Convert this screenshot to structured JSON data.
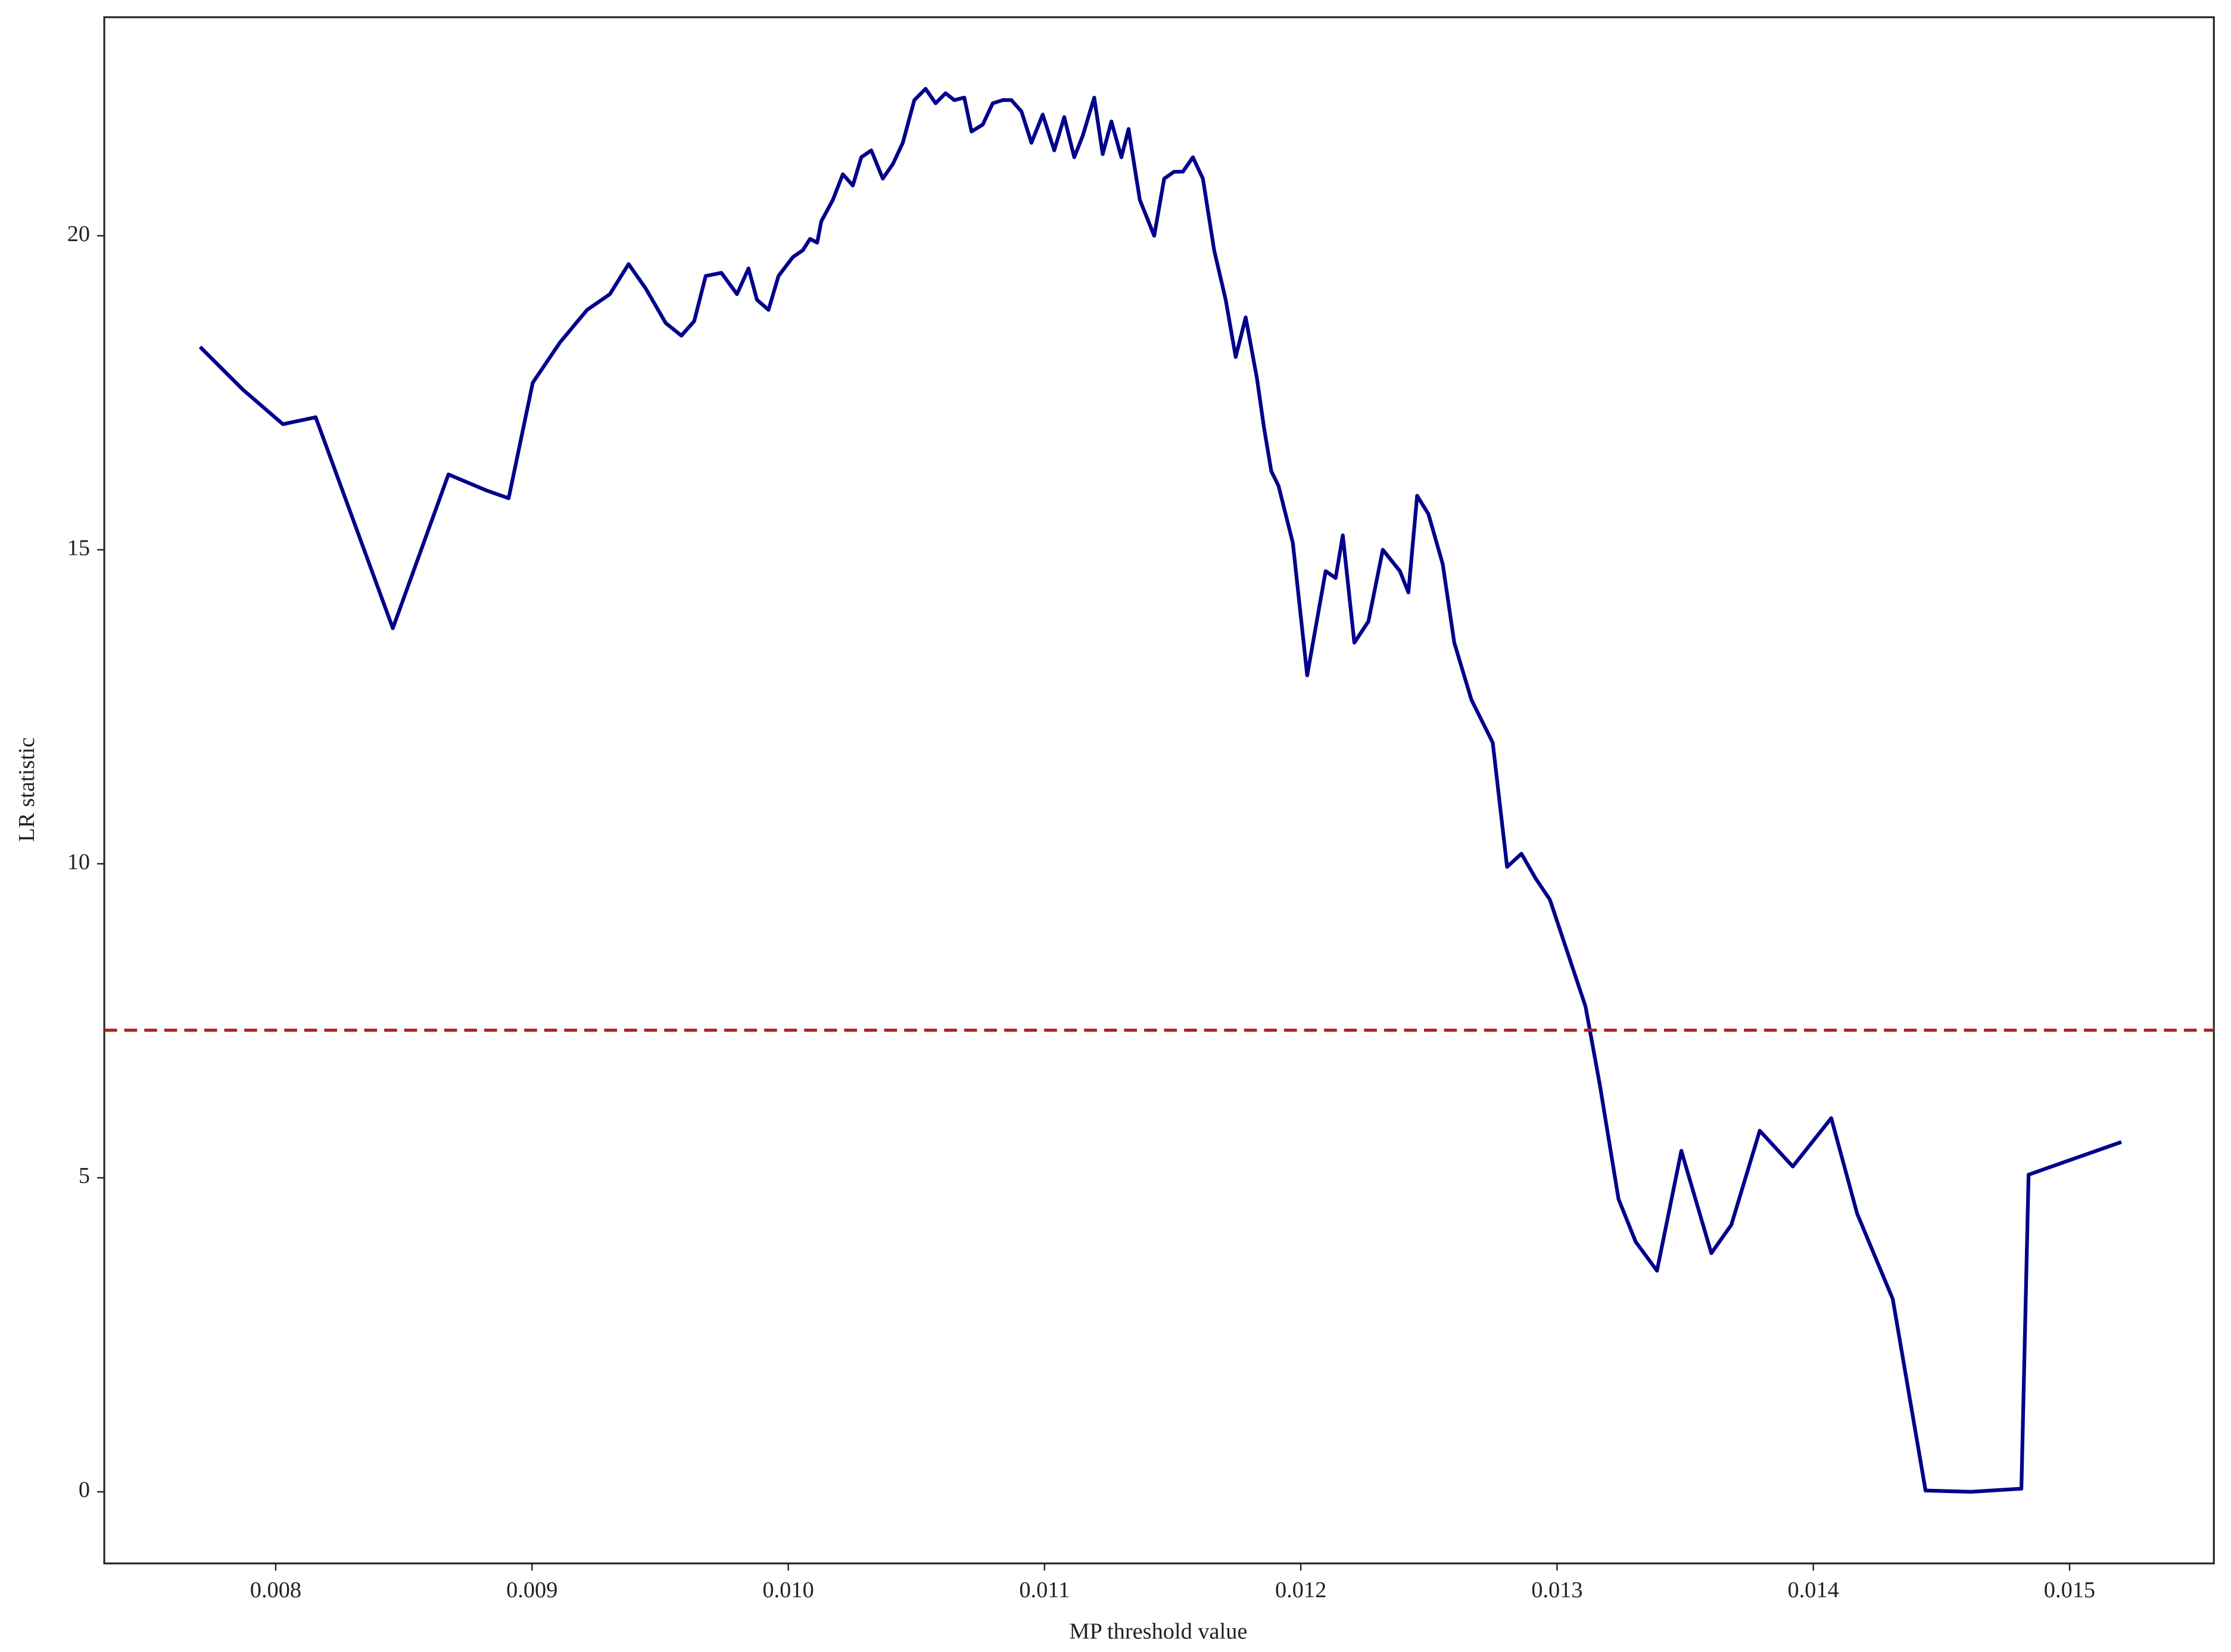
{
  "chart_data": {
    "type": "line",
    "x_label": "MP threshold value",
    "y_label": "LR statistic",
    "x": [
      0.007705,
      0.007872,
      0.008028,
      0.008156,
      0.008457,
      0.008674,
      0.008819,
      0.008909,
      0.009003,
      0.009109,
      0.009215,
      0.009304,
      0.009377,
      0.009444,
      0.009522,
      0.009583,
      0.009633,
      0.009678,
      0.009739,
      0.0098,
      0.009845,
      0.009878,
      0.009923,
      0.009962,
      0.010018,
      0.010057,
      0.010085,
      0.010113,
      0.010129,
      0.010174,
      0.010213,
      0.010252,
      0.010285,
      0.010324,
      0.010369,
      0.010408,
      0.010447,
      0.010492,
      0.010536,
      0.010575,
      0.010614,
      0.010648,
      0.010687,
      0.010715,
      0.010759,
      0.010798,
      0.010837,
      0.010871,
      0.01091,
      0.010949,
      0.010993,
      0.011038,
      0.011077,
      0.011116,
      0.011149,
      0.011194,
      0.011227,
      0.011261,
      0.0113,
      0.011328,
      0.011372,
      0.011428,
      0.011467,
      0.011506,
      0.01154,
      0.011579,
      0.011618,
      0.011662,
      0.011707,
      0.011746,
      0.011785,
      0.011829,
      0.011857,
      0.011885,
      0.011913,
      0.011969,
      0.012025,
      0.012097,
      0.012136,
      0.012164,
      0.012209,
      0.012264,
      0.01232,
      0.012387,
      0.01242,
      0.012454,
      0.012498,
      0.012554,
      0.012599,
      0.012666,
      0.012749,
      0.012805,
      0.012861,
      0.012916,
      0.012972,
      0.013111,
      0.013167,
      0.01324,
      0.013307,
      0.01339,
      0.013485,
      0.013602,
      0.01368,
      0.013791,
      0.01392,
      0.01407,
      0.014171,
      0.01431,
      0.014438,
      0.014616,
      0.014812,
      0.01484,
      0.015202
    ],
    "series": [
      {
        "name": "LR statistic",
        "color": "#00008b",
        "values": [
          18.23,
          17.55,
          17.0,
          17.11,
          13.75,
          16.2,
          15.95,
          15.82,
          17.66,
          18.3,
          18.82,
          19.07,
          19.55,
          19.16,
          18.61,
          18.41,
          18.64,
          19.36,
          19.41,
          19.07,
          19.48,
          18.98,
          18.82,
          19.36,
          19.66,
          19.77,
          19.95,
          19.89,
          20.23,
          20.57,
          20.98,
          20.8,
          21.25,
          21.36,
          20.91,
          21.14,
          21.48,
          22.16,
          22.34,
          22.11,
          22.27,
          22.16,
          22.2,
          21.66,
          21.77,
          22.11,
          22.16,
          22.16,
          21.98,
          21.48,
          21.93,
          21.36,
          21.89,
          21.25,
          21.59,
          22.2,
          21.3,
          21.82,
          21.25,
          21.7,
          20.57,
          20.0,
          20.91,
          21.02,
          21.02,
          21.25,
          20.91,
          19.77,
          18.98,
          18.07,
          18.7,
          17.73,
          16.93,
          16.25,
          16.02,
          15.11,
          13.0,
          14.66,
          14.55,
          15.23,
          13.52,
          13.86,
          15.0,
          14.66,
          14.32,
          15.86,
          15.57,
          14.77,
          13.52,
          12.61,
          11.93,
          9.95,
          10.16,
          9.77,
          9.43,
          7.73,
          6.48,
          4.66,
          3.98,
          3.52,
          5.43,
          3.8,
          4.25,
          5.75,
          5.18,
          5.95,
          4.43,
          3.07,
          0.02,
          0.0,
          0.05,
          5.05,
          5.57
        ]
      }
    ],
    "threshold": {
      "value": 7.35,
      "color": "#b22222"
    },
    "xlim": [
      0.007331,
      0.015563
    ],
    "ylim": [
      -1.14,
      23.48
    ],
    "xticks": [
      0.008,
      0.009,
      {
        "value": 0.01,
        "label": "0.010"
      },
      0.011,
      0.012,
      0.013,
      0.014,
      0.015
    ],
    "yticks": [
      0,
      5,
      10,
      15,
      20
    ],
    "grid": false
  }
}
